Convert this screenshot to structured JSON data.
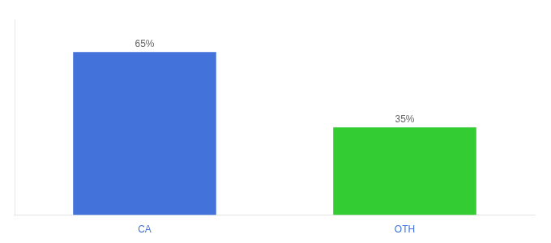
{
  "chart_data": {
    "type": "bar",
    "categories": [
      "CA",
      "OTH"
    ],
    "values": [
      65,
      35
    ],
    "value_labels": [
      "65%",
      "35%"
    ],
    "colors": [
      "#4472db",
      "#33cc33"
    ],
    "ylim": [
      0,
      78
    ],
    "grid": false,
    "data_labels": true,
    "tick_labels": "x"
  }
}
